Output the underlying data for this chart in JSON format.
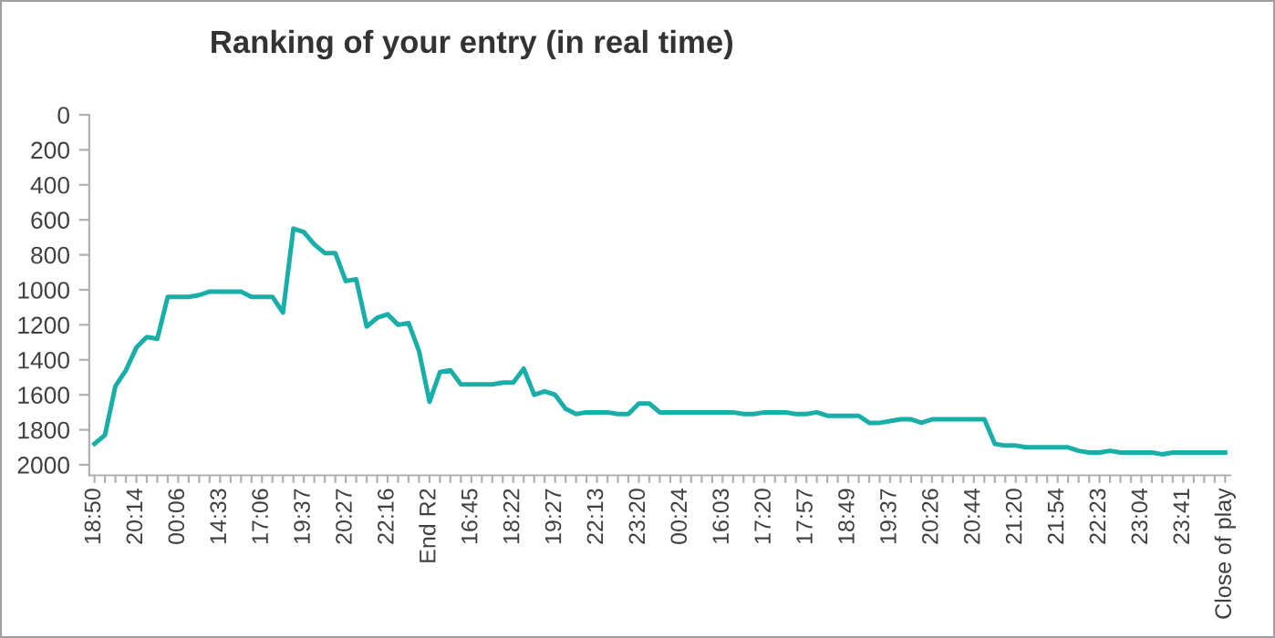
{
  "chart_data": {
    "type": "line",
    "title": "Ranking of your entry (in real time)",
    "categories": [
      "18:50",
      null,
      null,
      null,
      "20:14",
      null,
      null,
      null,
      "00:06",
      null,
      null,
      null,
      "14:33",
      null,
      null,
      null,
      "17:06",
      null,
      null,
      null,
      "19:37",
      null,
      null,
      null,
      "20:27",
      null,
      null,
      null,
      "22:16",
      null,
      null,
      null,
      "End R2",
      null,
      null,
      null,
      "16:45",
      null,
      null,
      null,
      "18:22",
      null,
      null,
      null,
      "19:27",
      null,
      null,
      null,
      "22:13",
      null,
      null,
      null,
      "23:20",
      null,
      null,
      null,
      "00:24",
      null,
      null,
      null,
      "16:03",
      null,
      null,
      null,
      "17:20",
      null,
      null,
      null,
      "17:57",
      null,
      null,
      null,
      "18:49",
      null,
      null,
      null,
      "19:37",
      null,
      null,
      null,
      "20:26",
      null,
      null,
      null,
      "20:44",
      null,
      null,
      null,
      "21:20",
      null,
      null,
      null,
      "21:54",
      null,
      null,
      null,
      "22:23",
      null,
      null,
      null,
      "23:04",
      null,
      null,
      null,
      "23:41",
      null,
      null,
      null,
      "Close of play"
    ],
    "series": [
      {
        "color": "#1aaea8",
        "values": [
          1880,
          1830,
          1550,
          1460,
          1330,
          1270,
          1280,
          1040,
          1040,
          1040,
          1030,
          1010,
          1010,
          1010,
          1010,
          1040,
          1040,
          1040,
          1130,
          650,
          670,
          740,
          790,
          790,
          950,
          940,
          1210,
          1160,
          1140,
          1200,
          1190,
          1350,
          1640,
          1470,
          1460,
          1540,
          1540,
          1540,
          1540,
          1530,
          1530,
          1450,
          1600,
          1580,
          1600,
          1680,
          1710,
          1700,
          1700,
          1700,
          1710,
          1710,
          1650,
          1650,
          1700,
          1700,
          1700,
          1700,
          1700,
          1700,
          1700,
          1700,
          1710,
          1710,
          1700,
          1700,
          1700,
          1710,
          1710,
          1700,
          1720,
          1720,
          1720,
          1720,
          1760,
          1760,
          1750,
          1740,
          1740,
          1760,
          1740,
          1740,
          1740,
          1740,
          1740,
          1740,
          1880,
          1890,
          1890,
          1900,
          1900,
          1900,
          1900,
          1900,
          1920,
          1930,
          1930,
          1920,
          1930,
          1930,
          1930,
          1930,
          1940,
          1930,
          1930,
          1930,
          1930,
          1930,
          1930
        ]
      }
    ],
    "ylim": [
      2060,
      0
    ],
    "yticks": [
      0,
      200,
      400,
      600,
      800,
      1000,
      1200,
      1400,
      1600,
      1800,
      2000
    ],
    "grid": false,
    "marker": "none",
    "line_style": "solid"
  }
}
